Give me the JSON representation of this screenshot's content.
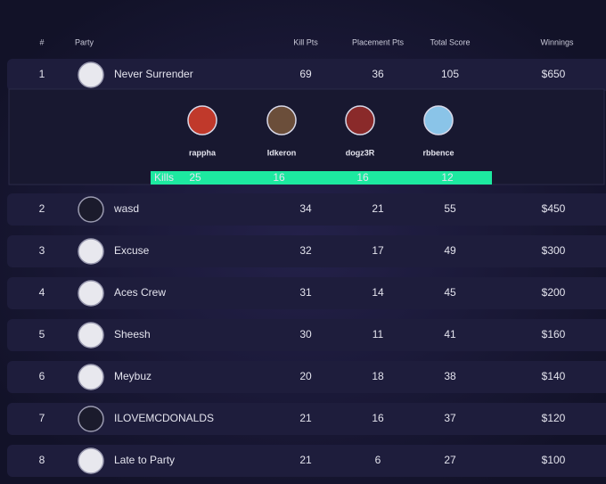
{
  "header": {
    "columns": [
      "#",
      "Party",
      "Kill Pts",
      "Placement Pts",
      "Total Score",
      "Winnings"
    ]
  },
  "rows": [
    {
      "rank": 1,
      "party": "Never Surrender",
      "kill_pts": 69,
      "placement_pts": 36,
      "total_score": 105,
      "winnings": "$650"
    },
    {
      "rank": 2,
      "party": "wasd",
      "kill_pts": 34,
      "placement_pts": 21,
      "total_score": 55,
      "winnings": "$450"
    },
    {
      "rank": 3,
      "party": "Excuse",
      "kill_pts": 32,
      "placement_pts": 17,
      "total_score": 49,
      "winnings": "$300"
    },
    {
      "rank": 4,
      "party": "Aces Crew",
      "kill_pts": 31,
      "placement_pts": 14,
      "total_score": 45,
      "winnings": "$200"
    },
    {
      "rank": 5,
      "party": "Sheesh",
      "kill_pts": 30,
      "placement_pts": 11,
      "total_score": 41,
      "winnings": "$160"
    },
    {
      "rank": 6,
      "party": "Meybuz",
      "kill_pts": 20,
      "placement_pts": 18,
      "total_score": 38,
      "winnings": "$140"
    },
    {
      "rank": 7,
      "party": "ILOVEMCDONALDS",
      "kill_pts": 21,
      "placement_pts": 16,
      "total_score": 37,
      "winnings": "$120"
    },
    {
      "rank": 8,
      "party": "Late to Party",
      "kill_pts": 21,
      "placement_pts": 6,
      "total_score": 27,
      "winnings": "$100"
    }
  ],
  "expanded": {
    "kills_label": "Kills",
    "players": [
      {
        "name": "rappha",
        "kills": 25
      },
      {
        "name": "Idkeron",
        "kills": 16
      },
      {
        "name": "dogz3R",
        "kills": 16
      },
      {
        "name": "rbbence",
        "kills": 12
      }
    ]
  }
}
